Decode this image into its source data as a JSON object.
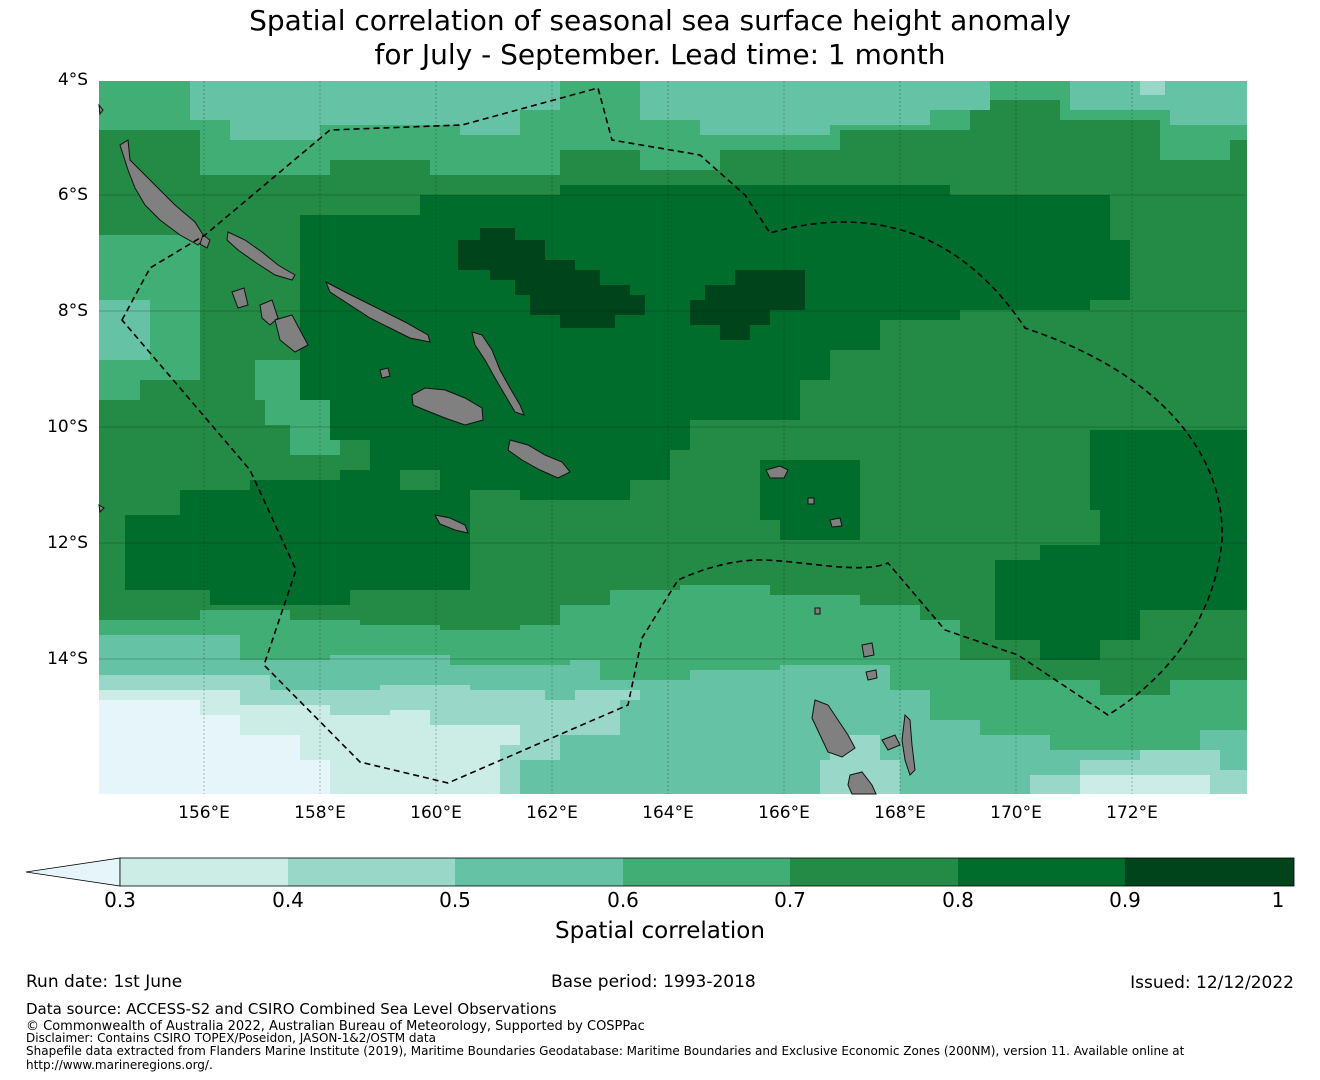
{
  "title": {
    "line1": "Spatial correlation of seasonal sea surface height anomaly",
    "line2": "for July - September. Lead time: 1 month"
  },
  "map": {
    "lat_ticks": [
      "4°S",
      "6°S",
      "8°S",
      "10°S",
      "12°S",
      "14°S"
    ],
    "lon_ticks": [
      "156°E",
      "158°E",
      "160°E",
      "162°E",
      "164°E",
      "166°E",
      "168°E",
      "170°E",
      "172°E"
    ],
    "lat_range": [
      -16.3,
      -4.0
    ],
    "lon_range": [
      154.2,
      174.0
    ],
    "land_color": "#808080"
  },
  "colorbar": {
    "label": "Spatial correlation",
    "ticks": [
      "0.3",
      "0.4",
      "0.5",
      "0.6",
      "0.7",
      "0.8",
      "0.9",
      "1"
    ],
    "colors": [
      "#e5f5f9",
      "#ccece6",
      "#99d8c9",
      "#66c2a4",
      "#41ae76",
      "#238b45",
      "#006d2c",
      "#00441b"
    ]
  },
  "footer": {
    "run_date": "Run date: 1st June",
    "base_period": "Base period: 1993-2018",
    "issued": "Issued: 12/12/2022",
    "data_source": "Data source: ACCESS-S2 and CSIRO Combined Sea Level Observations",
    "copyright": "© Commonwealth of Australia 2022, Australian Bureau of Meteorology, Supported by COSPPac",
    "disclaimer": "Disclaimer: Contains CSIRO TOPEX/Poseidon, JASON-1&2/OSTM data",
    "shapefile": "Shapefile data extracted from Flanders Marine Institute (2019), Maritime Boundaries Geodatabase: Maritime Boundaries and Exclusive Economic Zones (200NM), version 11. Available online at",
    "url": "http://www.marineregions.org/."
  }
}
